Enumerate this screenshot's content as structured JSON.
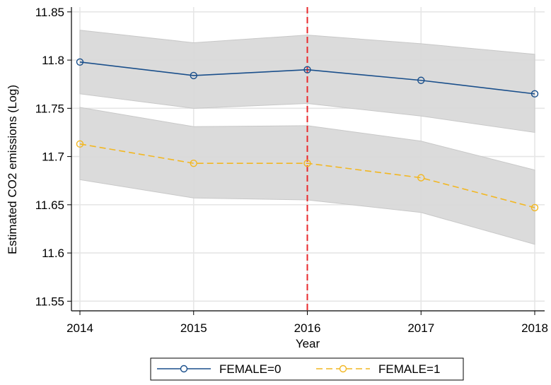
{
  "chart_data": {
    "type": "line",
    "xlabel": "Year",
    "ylabel": "Estimated CO2 emissions (Log)",
    "x": [
      2014,
      2015,
      2016,
      2017,
      2018
    ],
    "x_ticks": [
      "2014",
      "2015",
      "2016",
      "2017",
      "2018"
    ],
    "xlim": [
      2014,
      2018
    ],
    "ylim": [
      11.54,
      11.855
    ],
    "y_ticks": [
      {
        "value": 11.55,
        "label": "11.55"
      },
      {
        "value": 11.6,
        "label": "11.6"
      },
      {
        "value": 11.65,
        "label": "11.65"
      },
      {
        "value": 11.7,
        "label": "11.7"
      },
      {
        "value": 11.75,
        "label": "11.75"
      },
      {
        "value": 11.8,
        "label": "11.8"
      },
      {
        "value": 11.85,
        "label": "11.85"
      }
    ],
    "grid": true,
    "reference_line": {
      "x": 2016,
      "color": "#e8282b",
      "style": "dashed"
    },
    "legend_position": "bottom",
    "series": [
      {
        "name": "FEMALE=0",
        "color": "#1a4f8b",
        "line_style": "solid",
        "marker": "hollow-circle",
        "values": [
          11.798,
          11.784,
          11.79,
          11.779,
          11.765
        ],
        "ci_upper": [
          11.831,
          11.818,
          11.826,
          11.817,
          11.806
        ],
        "ci_lower": [
          11.765,
          11.75,
          11.755,
          11.742,
          11.725
        ]
      },
      {
        "name": "FEMALE=1",
        "color": "#f2b722",
        "line_style": "dashed",
        "marker": "hollow-circle",
        "values": [
          11.713,
          11.693,
          11.693,
          11.678,
          11.647
        ],
        "ci_upper": [
          11.751,
          11.731,
          11.732,
          11.716,
          11.686
        ],
        "ci_lower": [
          11.676,
          11.657,
          11.655,
          11.642,
          11.609
        ]
      }
    ],
    "ci_fill_color": "#d9d9d9",
    "grid_color": "#e6e6e6"
  }
}
